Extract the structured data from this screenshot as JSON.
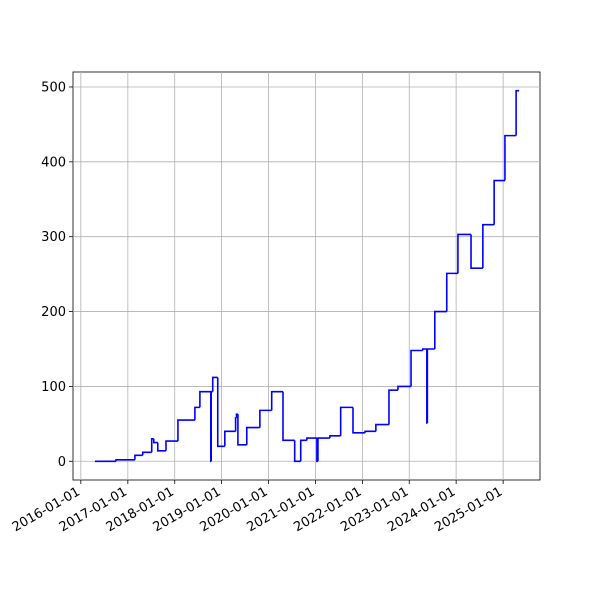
{
  "chart_data": {
    "type": "line",
    "step": "post",
    "x": [
      "2016-04-20",
      "2016-10-01",
      "2017-02-25",
      "2017-04-27",
      "2017-07-06",
      "2017-07-22",
      "2017-08-22",
      "2017-10-25",
      "2018-01-26",
      "2018-06-07",
      "2018-07-16",
      "2018-10-09",
      "2018-10-12",
      "2018-10-24",
      "2018-12-02",
      "2019-01-26",
      "2019-04-20",
      "2019-04-27",
      "2019-05-08",
      "2019-07-16",
      "2019-10-26",
      "2020-01-26",
      "2020-04-23",
      "2020-07-23",
      "2020-09-08",
      "2020-10-26",
      "2021-01-12",
      "2021-01-20",
      "2021-04-23",
      "2021-07-16",
      "2021-10-20",
      "2022-01-22",
      "2022-04-16",
      "2022-07-27",
      "2022-10-05",
      "2023-01-15",
      "2023-04-16",
      "2023-05-18",
      "2023-05-22",
      "2023-07-19",
      "2023-10-20",
      "2024-01-15",
      "2024-04-26",
      "2024-07-27",
      "2024-10-23",
      "2025-01-15",
      "2025-04-12",
      "2025-05-05"
    ],
    "series": [
      {
        "color": "#0000ff",
        "values": [
          0,
          2,
          8,
          12,
          30,
          25,
          14,
          27,
          55,
          72,
          93,
          0,
          93,
          112,
          20,
          40,
          58,
          63,
          22,
          45,
          68,
          93,
          28,
          0,
          28,
          31,
          0,
          31,
          34,
          72,
          38,
          40,
          49,
          95,
          100,
          148,
          150,
          51,
          150,
          200,
          251,
          303,
          258,
          316,
          375,
          435,
          495,
          495
        ]
      }
    ],
    "xlim": [
      "2015-11-01",
      "2025-10-15"
    ],
    "xticks": [
      "2016-01-01",
      "2017-01-01",
      "2018-01-01",
      "2019-01-01",
      "2020-01-01",
      "2021-01-01",
      "2022-01-01",
      "2023-01-01",
      "2024-01-01",
      "2025-01-01"
    ],
    "ylim": [
      -25,
      520
    ],
    "yticks": [
      0,
      100,
      200,
      300,
      400,
      500
    ],
    "grid": true
  }
}
